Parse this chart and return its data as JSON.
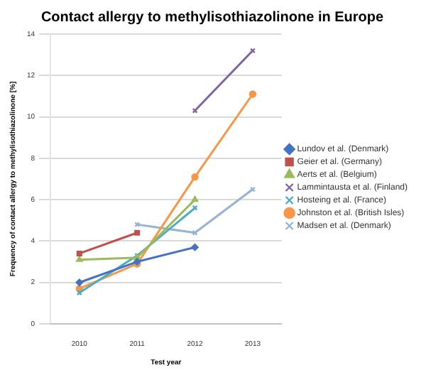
{
  "chart_data": {
    "type": "line",
    "title": "Contact allergy to methylisothiazolinone in Europe",
    "xlabel": "Test year",
    "ylabel": "Frequency of contact allergy to methylisothiazolinone [%]",
    "categories": [
      "2010",
      "2011",
      "2012",
      "2013"
    ],
    "series": [
      {
        "name": "Lundov et al. (Denmark)",
        "color": "#4472c4",
        "marker": "diamond",
        "values": [
          2.0,
          3.0,
          3.7,
          null
        ]
      },
      {
        "name": "Geier et al. (Germany)",
        "color": "#c0504d",
        "marker": "square",
        "values": [
          3.4,
          4.4,
          null,
          null
        ]
      },
      {
        "name": "Aerts et al. (Belgium)",
        "color": "#9bbb59",
        "marker": "triangle",
        "values": [
          3.1,
          3.2,
          6.0,
          null
        ]
      },
      {
        "name": "Lammintausta et al. (Finland)",
        "color": "#8064a2",
        "marker": "cross",
        "values": [
          null,
          null,
          10.3,
          13.2
        ]
      },
      {
        "name": "Hosteing et al. (France)",
        "color": "#4bacc6",
        "marker": "cross",
        "values": [
          1.5,
          3.3,
          5.6,
          null
        ]
      },
      {
        "name": "Johnston et al. (British Isles)",
        "color": "#f79646",
        "marker": "circle",
        "values": [
          1.7,
          2.9,
          7.1,
          11.1
        ]
      },
      {
        "name": "Madsen et al. (Denmark)",
        "color": "#95b3d7",
        "marker": "cross",
        "values": [
          null,
          4.8,
          4.4,
          6.5
        ]
      }
    ],
    "ylim": [
      0,
      14
    ],
    "yticks": [
      0,
      2,
      4,
      6,
      8,
      10,
      12,
      14
    ],
    "grid": "y",
    "legend": "right",
    "line_style": "solid"
  }
}
